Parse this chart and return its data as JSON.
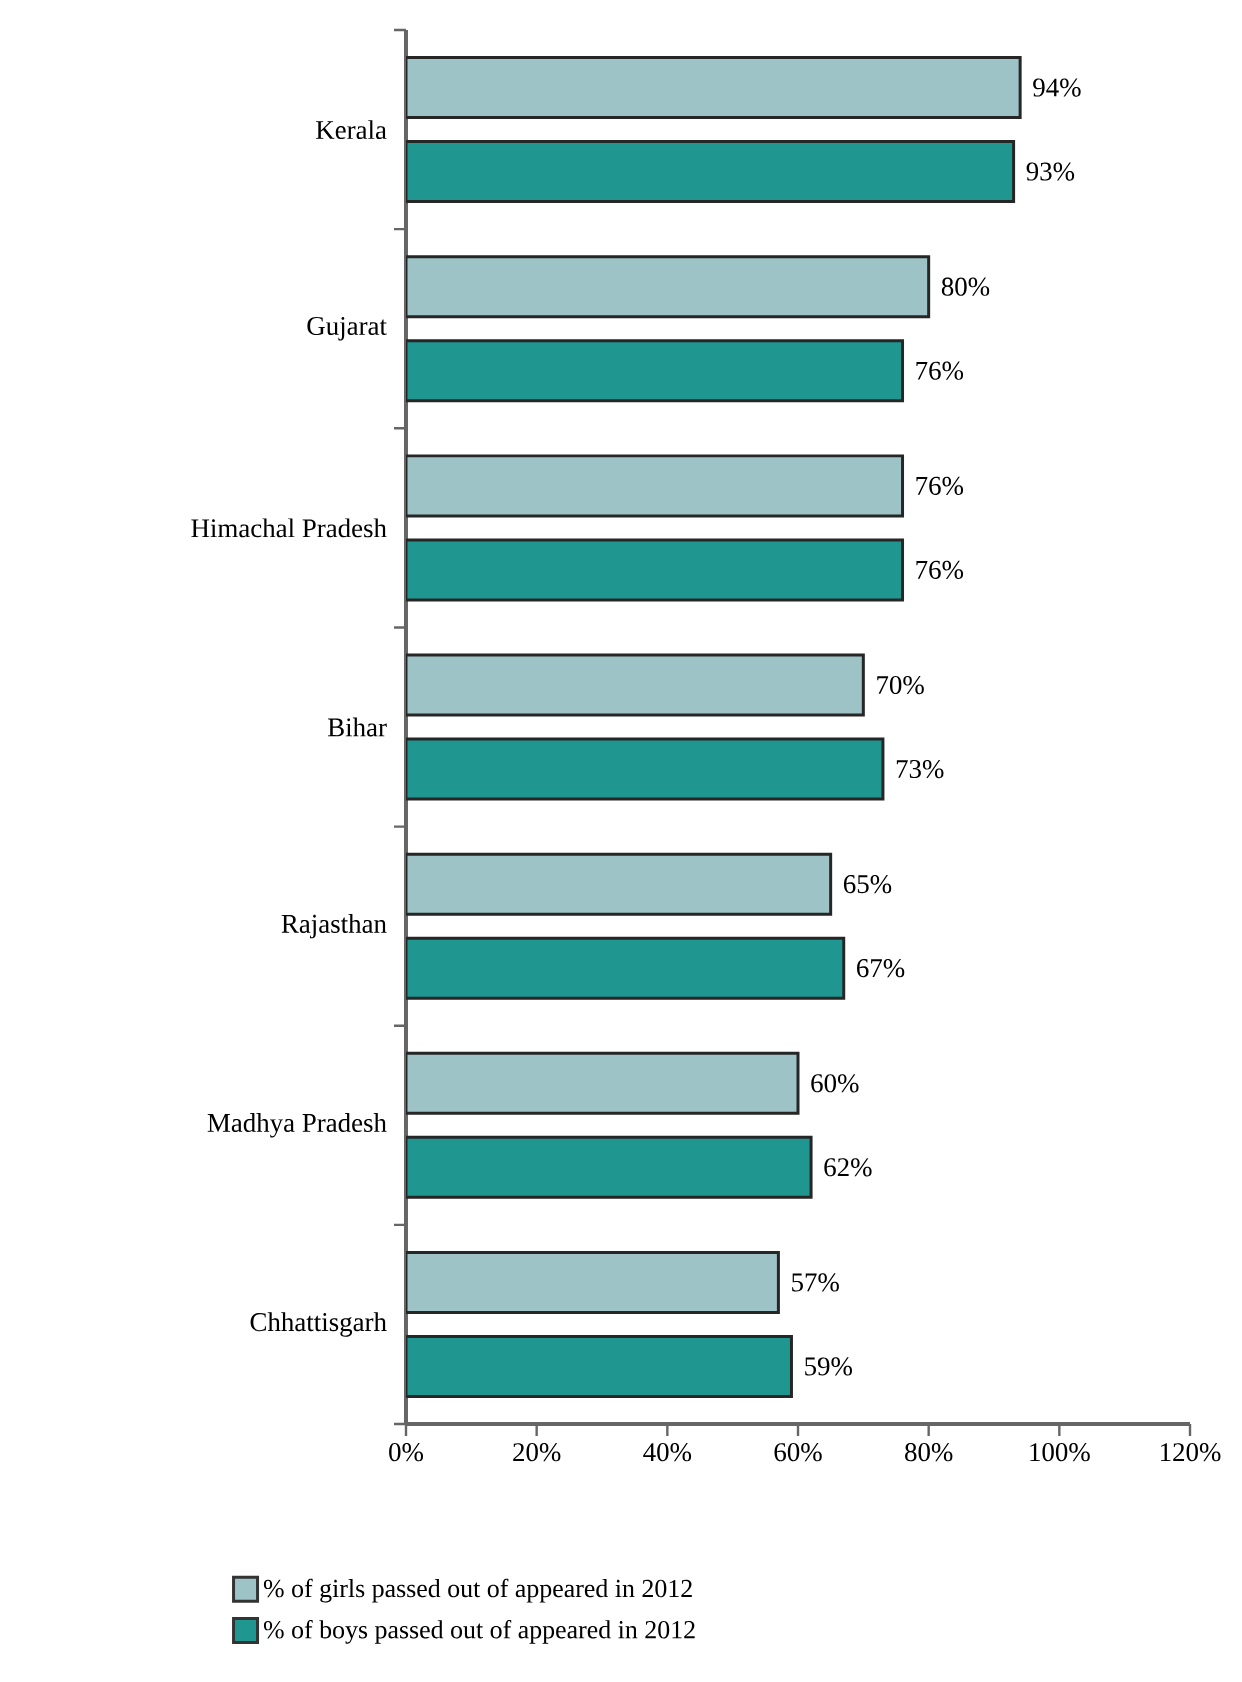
{
  "chart_data": {
    "type": "bar",
    "orientation": "horizontal",
    "categories": [
      "Kerala",
      "Gujarat",
      "Himachal Pradesh",
      "Bihar",
      "Rajasthan",
      "Madhya Pradesh",
      "Chhattisgarh"
    ],
    "series": [
      {
        "name": "% of girls passed out of appeared in 2012",
        "color": "#9dc3c6",
        "values": [
          94,
          80,
          76,
          70,
          65,
          60,
          57
        ],
        "value_labels": [
          "94%",
          "80%",
          "76%",
          "70%",
          "65%",
          "60%",
          "57%"
        ]
      },
      {
        "name": "% of boys passed out of appeared in 2012",
        "color": "#1f9690",
        "values": [
          93,
          76,
          76,
          73,
          67,
          62,
          59
        ],
        "value_labels": [
          "93%",
          "76%",
          "76%",
          "73%",
          "67%",
          "62%",
          "59%"
        ]
      }
    ],
    "xlim": [
      0,
      120
    ],
    "xticks": [
      {
        "value": 0,
        "label": "0%"
      },
      {
        "value": 20,
        "label": "20%"
      },
      {
        "value": 40,
        "label": "40%"
      },
      {
        "value": 60,
        "label": "60%"
      },
      {
        "value": 80,
        "label": "80%"
      },
      {
        "value": 100,
        "label": "100%"
      },
      {
        "value": 120,
        "label": "120%"
      }
    ],
    "grid": false,
    "legend": "bottom"
  }
}
